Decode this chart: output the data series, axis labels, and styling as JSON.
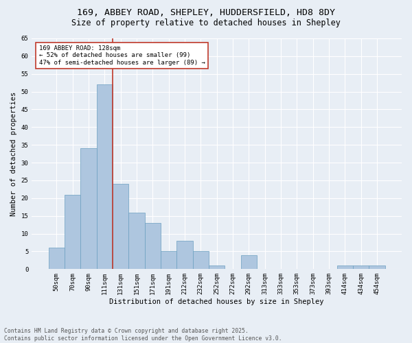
{
  "title1": "169, ABBEY ROAD, SHEPLEY, HUDDERSFIELD, HD8 8DY",
  "title2": "Size of property relative to detached houses in Shepley",
  "xlabel": "Distribution of detached houses by size in Shepley",
  "ylabel": "Number of detached properties",
  "footnote": "Contains HM Land Registry data © Crown copyright and database right 2025.\nContains public sector information licensed under the Open Government Licence v3.0.",
  "bin_labels": [
    "50sqm",
    "70sqm",
    "90sqm",
    "111sqm",
    "131sqm",
    "151sqm",
    "171sqm",
    "191sqm",
    "212sqm",
    "232sqm",
    "252sqm",
    "272sqm",
    "292sqm",
    "313sqm",
    "333sqm",
    "353sqm",
    "373sqm",
    "393sqm",
    "414sqm",
    "434sqm",
    "454sqm"
  ],
  "bar_values": [
    6,
    21,
    34,
    52,
    24,
    16,
    13,
    5,
    8,
    5,
    1,
    0,
    4,
    0,
    0,
    0,
    0,
    0,
    1,
    1,
    1
  ],
  "bar_color": "#aec6df",
  "bar_edge_color": "#6a9fc0",
  "vline_color": "#c0392b",
  "annotation_text": "169 ABBEY ROAD: 128sqm\n← 52% of detached houses are smaller (99)\n47% of semi-detached houses are larger (89) →",
  "annotation_box_color": "#ffffff",
  "annotation_box_edge": "#c0392b",
  "ylim": [
    0,
    65
  ],
  "yticks": [
    0,
    5,
    10,
    15,
    20,
    25,
    30,
    35,
    40,
    45,
    50,
    55,
    60,
    65
  ],
  "bg_color": "#e8eef5",
  "plot_bg_color": "#e8eef5",
  "grid_color": "#ffffff",
  "title_fontsize": 9.5,
  "title2_fontsize": 8.5,
  "axis_label_fontsize": 7.5,
  "tick_fontsize": 6.5,
  "annotation_fontsize": 6.5,
  "footnote_fontsize": 5.8
}
